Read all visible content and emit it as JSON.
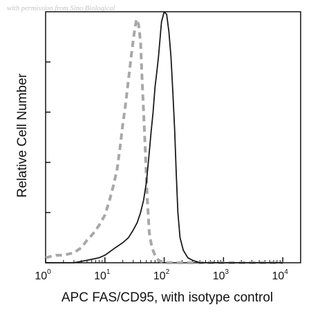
{
  "watermark": "with permission from Sino Biological",
  "chart_data": {
    "type": "line",
    "xlabel": "APC FAS/CD95, with isotype control",
    "ylabel": "Relative Cell Number",
    "x_scale": "log",
    "xlim": [
      1,
      20000
    ],
    "ylim": [
      0,
      1.0
    ],
    "x_ticks": [
      {
        "base": "10",
        "exp": "0",
        "value": 1
      },
      {
        "base": "10",
        "exp": "1",
        "value": 10
      },
      {
        "base": "10",
        "exp": "2",
        "value": 100
      },
      {
        "base": "10",
        "exp": "3",
        "value": 1000
      },
      {
        "base": "10",
        "exp": "4",
        "value": 10000
      }
    ],
    "y_ticks": [
      0,
      0.2,
      0.4,
      0.6,
      0.8
    ],
    "grid": false,
    "legend": "none",
    "series": [
      {
        "style": "dashed",
        "color": "#a8a8a8",
        "points": [
          [
            1,
            0.02
          ],
          [
            1.5,
            0.03
          ],
          [
            2,
            0.03
          ],
          [
            3,
            0.04
          ],
          [
            4,
            0.06
          ],
          [
            5,
            0.09
          ],
          [
            6,
            0.11
          ],
          [
            7,
            0.13
          ],
          [
            8,
            0.15
          ],
          [
            10,
            0.19
          ],
          [
            12,
            0.25
          ],
          [
            14,
            0.31
          ],
          [
            16,
            0.37
          ],
          [
            18,
            0.46
          ],
          [
            20,
            0.55
          ],
          [
            22,
            0.62
          ],
          [
            25,
            0.73
          ],
          [
            28,
            0.83
          ],
          [
            31,
            0.91
          ],
          [
            34,
            0.97
          ],
          [
            37,
            0.95
          ],
          [
            40,
            0.88
          ],
          [
            42,
            0.75
          ],
          [
            45,
            0.6
          ],
          [
            48,
            0.45
          ],
          [
            52,
            0.25
          ],
          [
            56,
            0.12
          ],
          [
            62,
            0.06
          ],
          [
            70,
            0.03
          ],
          [
            80,
            0.01
          ],
          [
            100,
            0.0
          ],
          [
            10000,
            0.0
          ]
        ]
      },
      {
        "style": "solid",
        "color": "#1a1a1a",
        "points": [
          [
            1,
            0.0
          ],
          [
            3,
            0.0
          ],
          [
            5,
            0.01
          ],
          [
            8,
            0.02
          ],
          [
            10,
            0.03
          ],
          [
            15,
            0.06
          ],
          [
            20,
            0.08
          ],
          [
            25,
            0.1
          ],
          [
            30,
            0.13
          ],
          [
            35,
            0.16
          ],
          [
            40,
            0.2
          ],
          [
            45,
            0.25
          ],
          [
            50,
            0.32
          ],
          [
            55,
            0.42
          ],
          [
            60,
            0.52
          ],
          [
            65,
            0.6
          ],
          [
            70,
            0.7
          ],
          [
            75,
            0.76
          ],
          [
            80,
            0.82
          ],
          [
            85,
            0.89
          ],
          [
            90,
            0.96
          ],
          [
            100,
            1.0
          ],
          [
            110,
            0.99
          ],
          [
            120,
            0.92
          ],
          [
            130,
            0.82
          ],
          [
            140,
            0.68
          ],
          [
            150,
            0.53
          ],
          [
            160,
            0.35
          ],
          [
            170,
            0.2
          ],
          [
            185,
            0.1
          ],
          [
            210,
            0.05
          ],
          [
            250,
            0.02
          ],
          [
            300,
            0.01
          ],
          [
            400,
            0.0
          ],
          [
            10000,
            0.0
          ]
        ]
      }
    ]
  }
}
